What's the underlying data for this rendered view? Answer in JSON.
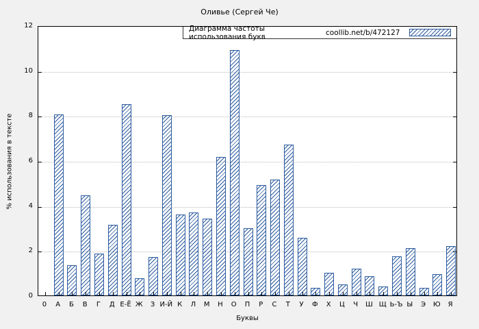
{
  "legend": {
    "label": "Диаграмма частоты использования букв",
    "source": "coollib.net/b/472127"
  },
  "colors": {
    "bar": "#2a5a9f",
    "grid": "#b8b8b8",
    "plot_bg": "#ffffff",
    "page_bg": "#f1f1f1"
  },
  "chart_data": {
    "type": "bar",
    "title": "Оливье (Сергей Че)",
    "xlabel": "Буквы",
    "ylabel": "% использования в тексте",
    "ylim": [
      0,
      12
    ],
    "yticks": [
      0,
      2,
      4,
      6,
      8,
      10,
      12
    ],
    "grid": "horizontal-dotted",
    "legend_position": "top-right",
    "bar_style": "diagonal-hatch",
    "categories": [
      "0",
      "А",
      "Б",
      "В",
      "Г",
      "Д",
      "Е-Ё",
      "Ж",
      "З",
      "И-Й",
      "К",
      "Л",
      "М",
      "Н",
      "О",
      "П",
      "Р",
      "С",
      "Т",
      "У",
      "Ф",
      "Х",
      "Ц",
      "Ч",
      "Ш",
      "Щ",
      "Ь-Ъ",
      "Ы",
      "Э",
      "Ю",
      "Я"
    ],
    "values": [
      0,
      8.05,
      1.35,
      4.45,
      1.85,
      3.15,
      8.5,
      0.75,
      1.7,
      8.0,
      3.6,
      3.7,
      3.4,
      6.15,
      10.9,
      3.0,
      4.9,
      5.15,
      6.7,
      2.55,
      0.35,
      1.0,
      0.5,
      1.2,
      0.85,
      0.4,
      1.75,
      2.1,
      0.35,
      0.95,
      2.2
    ]
  }
}
